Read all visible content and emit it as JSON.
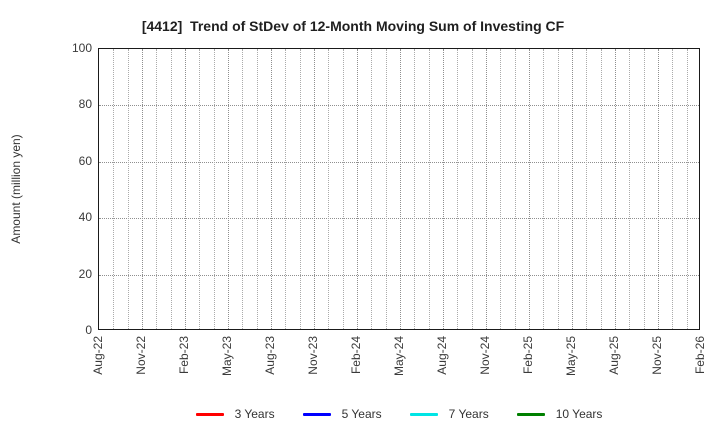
{
  "chart": {
    "title": "[4412]  Trend of StDev of 12-Month Moving Sum of Investing CF",
    "ylabel": "Amount (million yen)"
  },
  "chart_data": {
    "type": "line",
    "title": "[4412]  Trend of StDev of 12-Month Moving Sum of Investing CF",
    "xlabel": "",
    "ylabel": "Amount (million yen)",
    "ylim": [
      0,
      100
    ],
    "y_ticks": [
      0,
      20,
      40,
      60,
      80,
      100
    ],
    "x_tick_labels": [
      "Aug-22",
      "Nov-22",
      "Feb-23",
      "May-23",
      "Aug-23",
      "Nov-23",
      "Feb-24",
      "May-24",
      "Aug-24",
      "Nov-24",
      "Feb-25",
      "May-25",
      "Aug-25",
      "Nov-25",
      "Feb-26"
    ],
    "months_per_tick": 3,
    "grid": true,
    "grid_minor_vertical": "monthly",
    "legend_position": "bottom-center",
    "frame_color": "#1a1a1a",
    "grid_color": "#9a9a9a",
    "series": [
      {
        "name": "3 Years",
        "color": "#ff0000",
        "values": []
      },
      {
        "name": "5 Years",
        "color": "#0000ff",
        "values": []
      },
      {
        "name": "7 Years",
        "color": "#00e5e5",
        "values": []
      },
      {
        "name": "10 Years",
        "color": "#008000",
        "values": []
      }
    ]
  }
}
